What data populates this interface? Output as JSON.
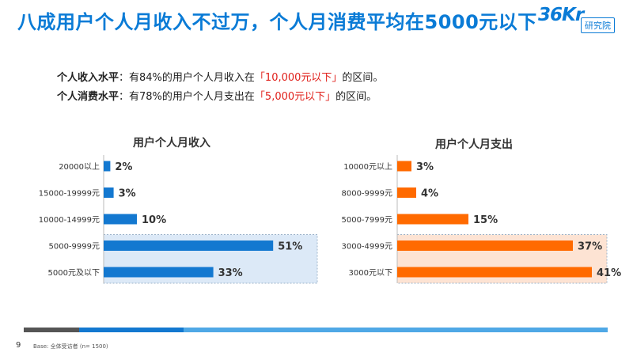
{
  "header": {
    "title": "八成用户个人月收入不过万，个人月消费平均在5000元以下",
    "logo_text": "36Kr",
    "logo_badge": "研究院"
  },
  "summary": {
    "line1": {
      "label": "个人收入水平",
      "pre": "：有84%的用户个人月收入在",
      "highlight": "「10,000元以下」",
      "post": "的区间。"
    },
    "line2": {
      "label": "个人消费水平",
      "pre": "：有78%的用户个人月支出在",
      "highlight": "「5,000元以下」",
      "post": "的区间。"
    }
  },
  "colors": {
    "income": "#1378d0",
    "expense": "#ff6a00",
    "title": "#0a7bd6",
    "highlight": "#e0201b",
    "income_box": "#dce9f7",
    "expense_box": "#fde3d3"
  },
  "chart_data": [
    {
      "type": "bar",
      "orientation": "horizontal",
      "title": "用户个人月收入",
      "categories": [
        "20000以上",
        "15000-19999元",
        "10000-14999元",
        "5000-9999元",
        "5000元及以下"
      ],
      "values": [
        2,
        3,
        10,
        51,
        33
      ],
      "value_labels": [
        "2%",
        "3%",
        "10%",
        "51%",
        "33%"
      ],
      "unit": "%",
      "highlighted_categories": [
        "5000-9999元",
        "5000元及以下"
      ],
      "grid": false,
      "legend": "none"
    },
    {
      "type": "bar",
      "orientation": "horizontal",
      "title": "用户个人月支出",
      "categories": [
        "10000元以上",
        "8000-9999元",
        "5000-7999元",
        "3000-4999元",
        "3000元以下"
      ],
      "values": [
        3,
        4,
        15,
        37,
        41
      ],
      "value_labels": [
        "3%",
        "4%",
        "15%",
        "37%",
        "41%"
      ],
      "unit": "%",
      "highlighted_categories": [
        "3000-4999元",
        "3000元以下"
      ],
      "grid": false,
      "legend": "none"
    }
  ],
  "footer": {
    "page_number": "9",
    "base_note": "Base: 全体受访者 (n= 1500)"
  }
}
